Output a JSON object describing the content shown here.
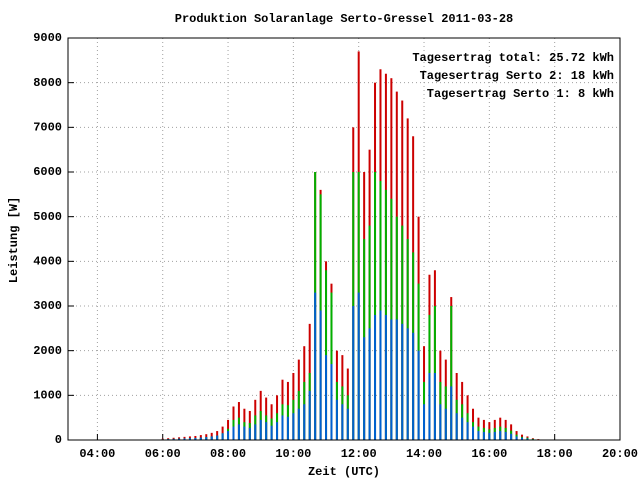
{
  "chart_data": {
    "type": "impulse",
    "title": "Produktion Solaranlage Serto-Gressel 2011-03-28",
    "x_label": "Zeit (UTC)",
    "y_label": "Leistung [W]",
    "x": [
      360,
      370,
      380,
      390,
      400,
      410,
      420,
      430,
      440,
      450,
      460,
      470,
      480,
      490,
      500,
      510,
      520,
      530,
      540,
      550,
      560,
      570,
      580,
      590,
      600,
      610,
      620,
      630,
      640,
      650,
      660,
      670,
      680,
      690,
      700,
      710,
      720,
      730,
      740,
      750,
      760,
      770,
      780,
      790,
      800,
      810,
      820,
      830,
      840,
      850,
      860,
      870,
      880,
      890,
      900,
      910,
      920,
      930,
      940,
      950,
      960,
      970,
      980,
      990,
      1000,
      1010,
      1020,
      1030,
      1040,
      1050
    ],
    "series": [
      {
        "name": "Tagesertrag total: 25.72 kWh",
        "color": "#cc0000",
        "values": [
          30,
          40,
          50,
          60,
          70,
          80,
          90,
          110,
          130,
          160,
          200,
          300,
          450,
          750,
          850,
          700,
          650,
          900,
          1100,
          950,
          800,
          1000,
          1350,
          1300,
          1500,
          1800,
          2100,
          2600,
          6000,
          5600,
          4000,
          3500,
          2000,
          1900,
          1600,
          7000,
          8700,
          6000,
          6500,
          8000,
          8300,
          8200,
          8100,
          7800,
          7600,
          7200,
          6800,
          5000,
          2100,
          3700,
          3800,
          2000,
          1800,
          3200,
          1500,
          1300,
          1000,
          700,
          500,
          450,
          400,
          450,
          500,
          450,
          350,
          200,
          120,
          80,
          40,
          20
        ]
      },
      {
        "name": "Tagesertrag Serto 2: 18 kWh",
        "color": "#00b000",
        "values": [
          15,
          20,
          25,
          30,
          35,
          40,
          45,
          55,
          65,
          80,
          100,
          150,
          250,
          450,
          500,
          400,
          380,
          550,
          650,
          550,
          480,
          600,
          800,
          780,
          900,
          1100,
          1300,
          1500,
          6000,
          5500,
          3800,
          3300,
          1300,
          1200,
          1000,
          6000,
          6000,
          4500,
          4800,
          6000,
          5800,
          5600,
          5400,
          5000,
          4800,
          4500,
          4200,
          3500,
          1300,
          2800,
          3000,
          1300,
          1200,
          3000,
          900,
          800,
          600,
          400,
          300,
          270,
          240,
          270,
          300,
          270,
          210,
          120,
          70,
          50,
          25,
          12
        ]
      },
      {
        "name": "Tagesertrag Serto 1: 8 kWh",
        "color": "#0060d0",
        "values": [
          15,
          20,
          25,
          30,
          35,
          40,
          45,
          55,
          65,
          80,
          100,
          150,
          200,
          300,
          350,
          300,
          270,
          350,
          450,
          400,
          320,
          400,
          550,
          520,
          600,
          700,
          800,
          1100,
          3300,
          2900,
          1900,
          1700,
          900,
          800,
          700,
          3000,
          3300,
          2300,
          2500,
          2800,
          2900,
          2800,
          2700,
          2700,
          2600,
          2500,
          2400,
          2000,
          800,
          1500,
          1500,
          800,
          700,
          1200,
          600,
          500,
          400,
          300,
          200,
          180,
          160,
          180,
          200,
          180,
          140,
          80,
          50,
          30,
          15,
          8
        ]
      }
    ],
    "xlim": [
      186,
      1200
    ],
    "xticks": [
      {
        "value": 240,
        "label": "04:00"
      },
      {
        "value": 360,
        "label": "06:00"
      },
      {
        "value": 480,
        "label": "08:00"
      },
      {
        "value": 600,
        "label": "10:00"
      },
      {
        "value": 720,
        "label": "12:00"
      },
      {
        "value": 840,
        "label": "14:00"
      },
      {
        "value": 960,
        "label": "16:00"
      },
      {
        "value": 1080,
        "label": "18:00"
      },
      {
        "value": 1200,
        "label": "20:00"
      }
    ],
    "ylim": [
      0,
      9000
    ],
    "yticks": [
      0,
      1000,
      2000,
      3000,
      4000,
      5000,
      6000,
      7000,
      8000,
      9000
    ],
    "grid": true,
    "legend": "top-right"
  }
}
